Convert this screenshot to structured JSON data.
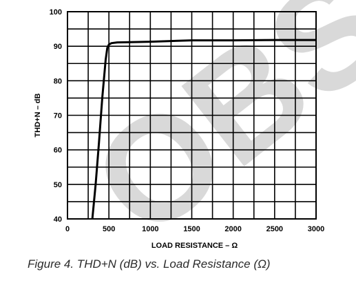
{
  "caption": "Figure 4.  THD+N (dB) vs. Load Resistance (Ω)",
  "watermark": "OBS",
  "chart_data": {
    "type": "line",
    "title": "",
    "xlabel": "LOAD RESISTANCE  –  Ω",
    "ylabel": "THD+N – dB",
    "xlim": [
      0,
      3000
    ],
    "ylim": [
      40,
      100
    ],
    "xticks": [
      "0",
      "500",
      "1000",
      "1500",
      "2000",
      "2500",
      "3000"
    ],
    "yticks": [
      "40",
      "50",
      "60",
      "70",
      "80",
      "90",
      "100"
    ],
    "grid": true,
    "grid_x_minor_step": 250,
    "grid_y_minor_step": 5,
    "series": [
      {
        "x": [
          300,
          340,
          380,
          420,
          460,
          480,
          500,
          530,
          600,
          800,
          1000,
          1500,
          2000,
          2500,
          3000
        ],
        "y": [
          40,
          50,
          62,
          75,
          86,
          89.5,
          90.5,
          90.9,
          91.1,
          91.2,
          91.3,
          91.7,
          91.7,
          91.8,
          91.8
        ]
      }
    ],
    "colors": {
      "line": "#000000",
      "grid": "#000000",
      "watermark": "#d9d9d9"
    }
  }
}
